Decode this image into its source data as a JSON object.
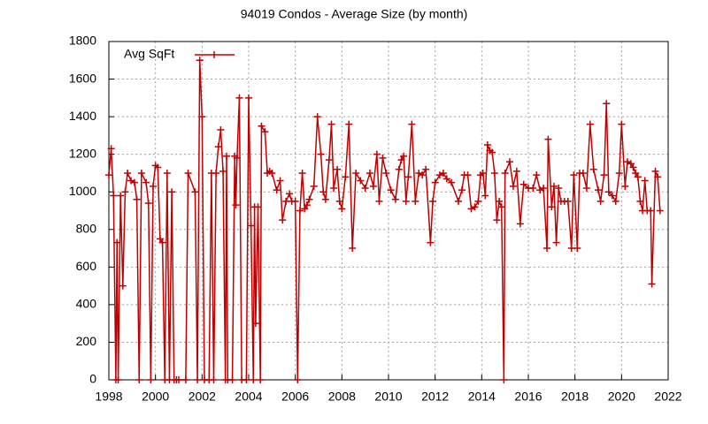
{
  "chart_data": {
    "type": "line",
    "title": "94019 Condos - Average Size (by month)",
    "x": [
      1998.0,
      1998.1,
      1998.2,
      1998.3,
      1998.35,
      1998.4,
      1998.5,
      1998.6,
      1998.7,
      1998.8,
      1998.95,
      1999.1,
      1999.2,
      1999.3,
      1999.4,
      1999.6,
      1999.7,
      1999.8,
      1999.9,
      2000.0,
      2000.1,
      2000.2,
      2000.3,
      2000.4,
      2000.5,
      2000.6,
      2000.7,
      2000.8,
      2000.9,
      2001.0,
      2001.3,
      2001.4,
      2001.7,
      2001.8,
      2001.9,
      2002.0,
      2002.1,
      2002.3,
      2002.4,
      2002.5,
      2002.6,
      2002.7,
      2002.8,
      2002.9,
      2003.0,
      2003.05,
      2003.1,
      2003.3,
      2003.4,
      2003.45,
      2003.5,
      2003.6,
      2003.7,
      2003.9,
      2004.0,
      2004.1,
      2004.2,
      2004.25,
      2004.3,
      2004.4,
      2004.5,
      2004.55,
      2004.7,
      2004.8,
      2004.9,
      2005.0,
      2005.2,
      2005.35,
      2005.45,
      2005.6,
      2005.75,
      2005.85,
      2006.0,
      2006.1,
      2006.2,
      2006.3,
      2006.4,
      2006.5,
      2006.6,
      2006.8,
      2006.95,
      2007.1,
      2007.2,
      2007.3,
      2007.45,
      2007.55,
      2007.65,
      2007.8,
      2007.9,
      2008.0,
      2008.15,
      2008.3,
      2008.45,
      2008.6,
      2008.8,
      2009.0,
      2009.2,
      2009.35,
      2009.5,
      2009.6,
      2009.75,
      2009.9,
      2010.1,
      2010.3,
      2010.45,
      2010.55,
      2010.65,
      2010.75,
      2010.85,
      2011.0,
      2011.15,
      2011.3,
      2011.45,
      2011.6,
      2011.8,
      2011.9,
      2012.0,
      2012.2,
      2012.35,
      2012.5,
      2012.7,
      2013.0,
      2013.15,
      2013.25,
      2013.4,
      2013.55,
      2013.7,
      2013.85,
      2013.95,
      2014.05,
      2014.15,
      2014.25,
      2014.35,
      2014.45,
      2014.55,
      2014.65,
      2014.75,
      2014.85,
      2014.95,
      2015.0,
      2015.2,
      2015.35,
      2015.5,
      2015.65,
      2015.8,
      2016.0,
      2016.2,
      2016.35,
      2016.5,
      2016.65,
      2016.8,
      2016.85,
      2017.0,
      2017.1,
      2017.2,
      2017.3,
      2017.4,
      2017.55,
      2017.7,
      2017.85,
      2017.95,
      2018.1,
      2018.2,
      2018.35,
      2018.5,
      2018.65,
      2018.8,
      2019.0,
      2019.1,
      2019.25,
      2019.35,
      2019.45,
      2019.6,
      2019.75,
      2019.9,
      2020.0,
      2020.15,
      2020.25,
      2020.4,
      2020.5,
      2020.6,
      2020.7,
      2020.8,
      2020.9,
      2021.0,
      2021.1,
      2021.25,
      2021.3,
      2021.45,
      2021.55,
      2021.65
    ],
    "series": [
      {
        "name": "Avg SqFt",
        "color": "#c00000",
        "values": [
          1090,
          1230,
          980,
          0,
          730,
          0,
          980,
          500,
          1000,
          1100,
          1060,
          1050,
          960,
          0,
          1100,
          1050,
          940,
          0,
          1030,
          1140,
          1130,
          750,
          730,
          0,
          1100,
          0,
          1000,
          0,
          0,
          0,
          0,
          1100,
          1000,
          0,
          1700,
          1400,
          0,
          0,
          1100,
          0,
          1100,
          1240,
          1330,
          1110,
          0,
          1190,
          0,
          0,
          1190,
          930,
          1180,
          1500,
          0,
          0,
          1500,
          820,
          0,
          920,
          300,
          920,
          0,
          1350,
          1320,
          1100,
          1110,
          1100,
          1010,
          1060,
          850,
          950,
          990,
          950,
          950,
          0,
          900,
          1100,
          910,
          930,
          960,
          1030,
          1400,
          1200,
          1000,
          960,
          1170,
          1360,
          1020,
          1120,
          950,
          910,
          1080,
          1360,
          700,
          1100,
          1060,
          1020,
          1100,
          1030,
          1200,
          950,
          1180,
          1100,
          1010,
          960,
          1120,
          1170,
          1190,
          950,
          1080,
          1360,
          950,
          1100,
          1090,
          1120,
          730,
          950,
          1050,
          1090,
          1100,
          1070,
          1050,
          950,
          1010,
          1090,
          1090,
          910,
          920,
          950,
          1090,
          1100,
          980,
          1250,
          1220,
          1210,
          1100,
          850,
          950,
          920,
          0,
          1100,
          1160,
          1030,
          1110,
          830,
          1040,
          1020,
          1020,
          1090,
          1010,
          1020,
          700,
          1280,
          920,
          1030,
          730,
          1020,
          950,
          950,
          950,
          700,
          1090,
          700,
          1100,
          1100,
          1020,
          1360,
          1120,
          1010,
          950,
          1090,
          1470,
          1000,
          980,
          950,
          1100,
          1360,
          1030,
          1160,
          1150,
          1130,
          1100,
          1080,
          950,
          900,
          1060,
          900,
          900,
          510,
          1110,
          1080,
          900
        ]
      }
    ],
    "xlim": [
      1998,
      2022
    ],
    "xticks": [
      1998,
      2000,
      2002,
      2004,
      2006,
      2008,
      2010,
      2012,
      2014,
      2016,
      2018,
      2020,
      2022
    ],
    "ylim": [
      0,
      1800
    ],
    "yticks": [
      0,
      200,
      400,
      600,
      800,
      1000,
      1200,
      1400,
      1600,
      1800
    ],
    "grid": true,
    "legend": "top-left"
  }
}
